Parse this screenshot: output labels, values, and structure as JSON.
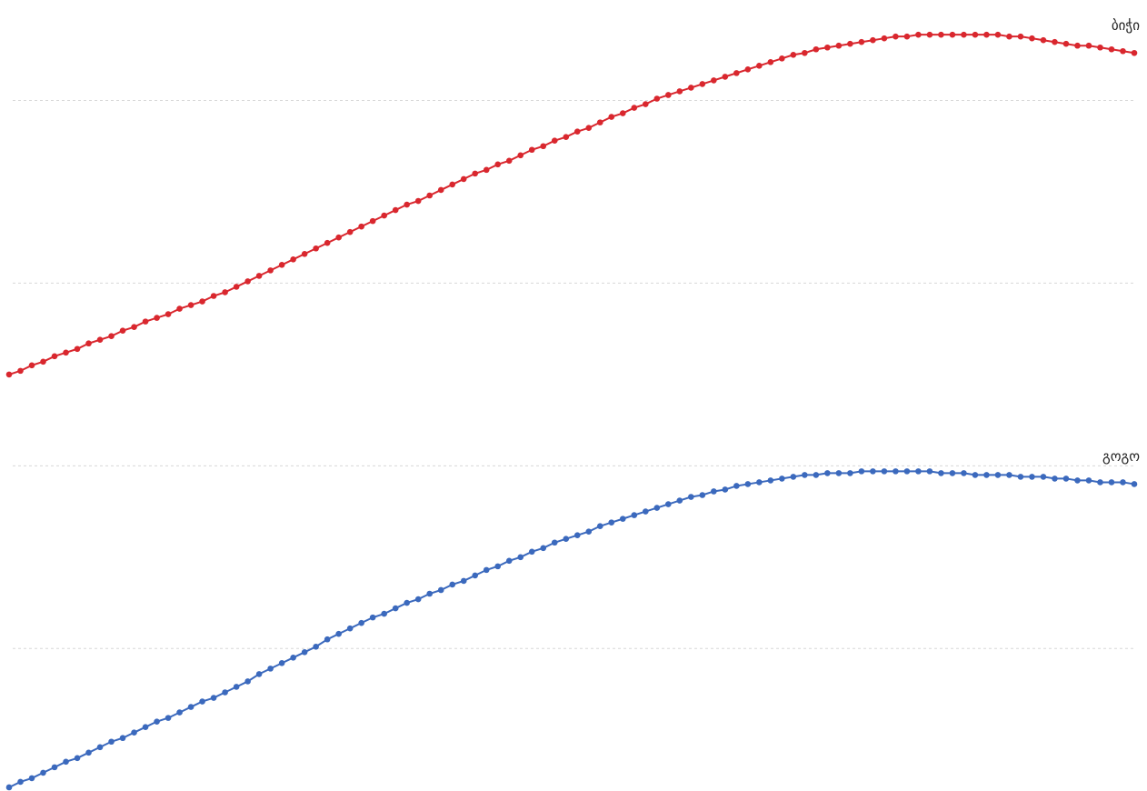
{
  "chart_data": {
    "type": "line",
    "series": [
      {
        "name": "ბიჭი",
        "color": "#d9272e",
        "values": [
          2.5,
          2.52,
          2.55,
          2.57,
          2.6,
          2.62,
          2.64,
          2.67,
          2.69,
          2.71,
          2.74,
          2.76,
          2.79,
          2.81,
          2.83,
          2.86,
          2.88,
          2.9,
          2.93,
          2.95,
          2.98,
          3.01,
          3.04,
          3.07,
          3.1,
          3.13,
          3.16,
          3.19,
          3.22,
          3.25,
          3.28,
          3.31,
          3.34,
          3.37,
          3.4,
          3.43,
          3.45,
          3.48,
          3.51,
          3.54,
          3.57,
          3.6,
          3.62,
          3.65,
          3.67,
          3.7,
          3.73,
          3.75,
          3.78,
          3.8,
          3.83,
          3.85,
          3.88,
          3.91,
          3.93,
          3.96,
          3.98,
          4.01,
          4.03,
          4.05,
          4.07,
          4.09,
          4.11,
          4.13,
          4.15,
          4.17,
          4.19,
          4.21,
          4.23,
          4.25,
          4.26,
          4.28,
          4.29,
          4.3,
          4.31,
          4.32,
          4.33,
          4.34,
          4.35,
          4.35,
          4.36,
          4.36,
          4.36,
          4.36,
          4.36,
          4.36,
          4.36,
          4.36,
          4.35,
          4.35,
          4.34,
          4.33,
          4.32,
          4.31,
          4.3,
          4.3,
          4.29,
          4.28,
          4.27,
          4.26
        ]
      },
      {
        "name": "გოგო",
        "color": "#3b69bd",
        "values": [
          0.24,
          0.27,
          0.29,
          0.32,
          0.35,
          0.38,
          0.4,
          0.43,
          0.46,
          0.49,
          0.51,
          0.54,
          0.57,
          0.6,
          0.62,
          0.65,
          0.68,
          0.71,
          0.73,
          0.76,
          0.79,
          0.82,
          0.86,
          0.89,
          0.92,
          0.95,
          0.98,
          1.01,
          1.05,
          1.08,
          1.11,
          1.14,
          1.17,
          1.19,
          1.22,
          1.25,
          1.27,
          1.3,
          1.32,
          1.35,
          1.37,
          1.4,
          1.43,
          1.45,
          1.48,
          1.5,
          1.53,
          1.55,
          1.58,
          1.6,
          1.62,
          1.64,
          1.67,
          1.69,
          1.71,
          1.73,
          1.75,
          1.77,
          1.79,
          1.81,
          1.83,
          1.84,
          1.86,
          1.87,
          1.89,
          1.9,
          1.91,
          1.92,
          1.93,
          1.94,
          1.95,
          1.95,
          1.96,
          1.96,
          1.96,
          1.97,
          1.97,
          1.97,
          1.97,
          1.97,
          1.97,
          1.97,
          1.96,
          1.96,
          1.96,
          1.95,
          1.95,
          1.95,
          1.95,
          1.94,
          1.94,
          1.94,
          1.93,
          1.93,
          1.92,
          1.92,
          1.91,
          1.91,
          1.91,
          1.9
        ]
      }
    ],
    "ylim": [
      0.22,
      4.55
    ],
    "yticks": [
      1,
      2,
      3,
      4
    ],
    "grid": true
  }
}
